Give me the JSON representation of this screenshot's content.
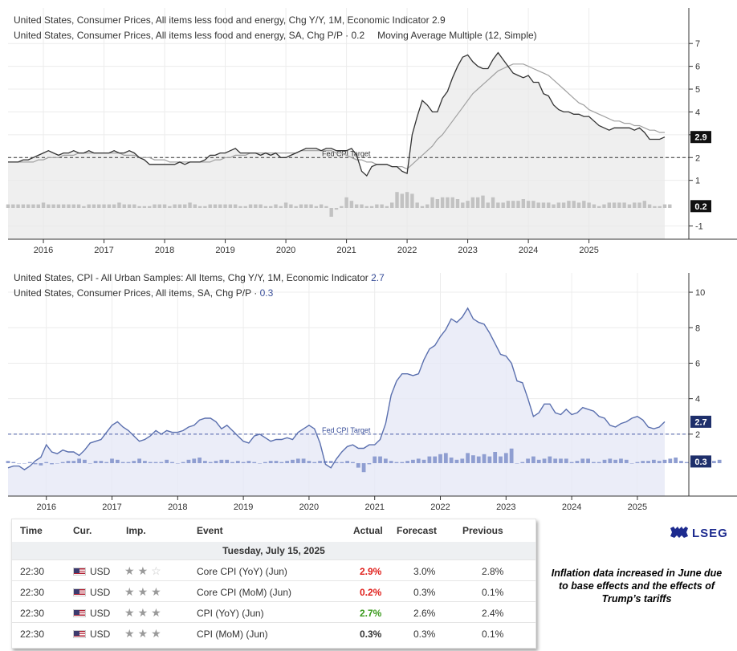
{
  "panel1": {
    "legend1_label": "United States, Consumer Prices, All items less food and energy, Chg Y/Y, 1M, Economic Indicator",
    "legend1_value": "2.9",
    "legend2_label": "United States, Consumer Prices, All items less food and energy, SA, Chg P/P ·",
    "legend2_value": "0.2",
    "legend2_extra": "Moving Average Multiple (12, Simple)",
    "target_label": "Fed CPI Target",
    "badge_line": "2.9",
    "badge_bar": "0.2"
  },
  "panel2": {
    "legend1_label": "United States, CPI - All Urban Samples: All Items, Chg Y/Y, 1M, Economic Indicator",
    "legend1_value": "2.7",
    "legend2_label": "United States, Consumer Prices, All items, SA, Chg P/P ·",
    "legend2_value": "0.3",
    "target_label": "Fed CPI Target",
    "badge_line": "2.7",
    "badge_bar": "0.3"
  },
  "calendar": {
    "headers": {
      "time": "Time",
      "cur": "Cur.",
      "imp": "Imp.",
      "event": "Event",
      "actual": "Actual",
      "forecast": "Forecast",
      "previous": "Previous"
    },
    "date": "Tuesday, July 15, 2025",
    "rows": [
      {
        "time": "22:30",
        "cur": "USD",
        "event": "Core CPI (YoY) (Jun)",
        "actual": "2.9%",
        "forecast": "3.0%",
        "previous": "2.8%",
        "actual_color": "#e0201c",
        "stars_filled": 2
      },
      {
        "time": "22:30",
        "cur": "USD",
        "event": "Core CPI (MoM) (Jun)",
        "actual": "0.2%",
        "forecast": "0.3%",
        "previous": "0.1%",
        "actual_color": "#e0201c",
        "stars_filled": 3
      },
      {
        "time": "22:30",
        "cur": "USD",
        "event": "CPI (YoY) (Jun)",
        "actual": "2.7%",
        "forecast": "2.6%",
        "previous": "2.4%",
        "actual_color": "#3a9a1c",
        "stars_filled": 3
      },
      {
        "time": "22:30",
        "cur": "USD",
        "event": "CPI (MoM) (Jun)",
        "actual": "0.3%",
        "forecast": "0.3%",
        "previous": "0.1%",
        "actual_color": "#333333",
        "stars_filled": 3
      }
    ]
  },
  "logo_text": "LSEG",
  "note": "Inflation data increased in June due to base effects and the effects of Trump’s tariffs",
  "chart_data": [
    {
      "type": "line",
      "x_start": "2015-06",
      "x_ticks": [
        "2016",
        "2017",
        "2018",
        "2019",
        "2020",
        "2021",
        "2022",
        "2023",
        "2024",
        "2025"
      ],
      "ylim": [
        -1.3,
        7.5
      ],
      "y_ticks": [
        "-1",
        "1",
        "2",
        "3",
        "4",
        "5",
        "6",
        "7"
      ],
      "reference_line": 2,
      "grid": true,
      "series": [
        {
          "name": "United States, Consumer Prices, All items less food and energy, Chg Y/Y, 1M, Economic Indicator",
          "kind": "line",
          "color": "#333333",
          "values": [
            1.8,
            1.8,
            1.8,
            1.9,
            1.9,
            2.0,
            2.1,
            2.2,
            2.3,
            2.2,
            2.1,
            2.2,
            2.2,
            2.3,
            2.2,
            2.2,
            2.3,
            2.2,
            2.2,
            2.2,
            2.2,
            2.3,
            2.2,
            2.2,
            2.3,
            2.2,
            2.0,
            1.9,
            1.7,
            1.7,
            1.7,
            1.7,
            1.7,
            1.7,
            1.8,
            1.7,
            1.8,
            1.8,
            1.8,
            1.9,
            2.1,
            2.1,
            2.2,
            2.2,
            2.3,
            2.4,
            2.2,
            2.2,
            2.2,
            2.2,
            2.1,
            2.2,
            2.1,
            2.2,
            2.0,
            2.0,
            2.1,
            2.2,
            2.3,
            2.4,
            2.4,
            2.4,
            2.3,
            2.4,
            2.4,
            2.3,
            2.3,
            2.3,
            2.4,
            2.1,
            1.4,
            1.2,
            1.6,
            1.7,
            1.7,
            1.7,
            1.6,
            1.6,
            1.4,
            1.3,
            3.0,
            3.8,
            4.5,
            4.3,
            4.0,
            4.0,
            4.6,
            4.9,
            5.5,
            6.0,
            6.4,
            6.5,
            6.2,
            6.0,
            5.9,
            5.9,
            6.3,
            6.6,
            6.3,
            6.0,
            5.7,
            5.6,
            5.5,
            5.6,
            5.3,
            5.3,
            4.8,
            4.7,
            4.3,
            4.1,
            4.0,
            4.0,
            3.9,
            3.9,
            3.8,
            3.8,
            3.6,
            3.4,
            3.3,
            3.2,
            3.3,
            3.3,
            3.3,
            3.3,
            3.2,
            3.3,
            3.1,
            2.8,
            2.8,
            2.8,
            2.9
          ]
        },
        {
          "name": "Moving Average Multiple (12, Simple)",
          "kind": "line",
          "color": "#a0a0a0",
          "values": [
            1.8,
            1.8,
            1.8,
            1.8,
            1.8,
            1.8,
            1.9,
            1.9,
            2.0,
            2.0,
            2.0,
            2.1,
            2.1,
            2.1,
            2.2,
            2.2,
            2.2,
            2.2,
            2.2,
            2.2,
            2.2,
            2.2,
            2.2,
            2.1,
            2.1,
            2.1,
            2.0,
            2.0,
            2.0,
            1.9,
            1.9,
            1.9,
            1.8,
            1.8,
            1.8,
            1.8,
            1.8,
            1.8,
            1.8,
            1.8,
            1.8,
            1.9,
            1.9,
            2.0,
            2.0,
            2.1,
            2.1,
            2.1,
            2.2,
            2.2,
            2.2,
            2.2,
            2.2,
            2.2,
            2.2,
            2.2,
            2.2,
            2.2,
            2.3,
            2.3,
            2.3,
            2.3,
            2.3,
            2.3,
            2.3,
            2.2,
            2.2,
            2.1,
            2.0,
            1.9,
            1.9,
            1.8,
            1.8,
            1.7,
            1.7,
            1.7,
            1.6,
            1.6,
            1.6,
            1.5,
            1.7,
            1.9,
            2.1,
            2.3,
            2.5,
            2.8,
            3.0,
            3.3,
            3.6,
            3.9,
            4.2,
            4.5,
            4.8,
            5.0,
            5.2,
            5.4,
            5.6,
            5.8,
            5.9,
            6.0,
            6.1,
            6.1,
            6.1,
            6.0,
            5.9,
            5.8,
            5.7,
            5.6,
            5.4,
            5.2,
            5.0,
            4.8,
            4.6,
            4.4,
            4.3,
            4.1,
            4.0,
            3.9,
            3.8,
            3.7,
            3.6,
            3.6,
            3.5,
            3.5,
            3.4,
            3.4,
            3.3,
            3.2,
            3.2,
            3.1,
            3.1
          ]
        },
        {
          "name": "United States, Consumer Prices, All items less food and energy, SA, Chg P/P",
          "kind": "bar",
          "color": "#c2c2c2",
          "values": [
            0.2,
            0.2,
            0.2,
            0.2,
            0.2,
            0.2,
            0.2,
            0.3,
            0.2,
            0.2,
            0.2,
            0.2,
            0.2,
            0.2,
            0.2,
            0.1,
            0.2,
            0.2,
            0.2,
            0.2,
            0.2,
            0.2,
            0.3,
            0.2,
            0.2,
            0.2,
            0.1,
            0.1,
            0.1,
            0.2,
            0.2,
            0.2,
            0.1,
            0.2,
            0.2,
            0.2,
            0.3,
            0.2,
            0.1,
            0.1,
            0.2,
            0.2,
            0.2,
            0.2,
            0.2,
            0.2,
            0.1,
            0.1,
            0.2,
            0.2,
            0.2,
            0.1,
            0.1,
            0.2,
            0.1,
            0.3,
            0.2,
            0.1,
            0.2,
            0.2,
            0.2,
            0.1,
            0.2,
            0.1,
            -0.5,
            -0.1,
            0.1,
            0.6,
            0.4,
            0.2,
            0.2,
            0.1,
            0.1,
            0.2,
            0.2,
            0.1,
            0.3,
            0.9,
            0.8,
            0.9,
            0.8,
            0.3,
            0.1,
            0.2,
            0.6,
            0.5,
            0.6,
            0.6,
            0.6,
            0.5,
            0.3,
            0.4,
            0.6,
            0.6,
            0.7,
            0.3,
            0.6,
            0.3,
            0.3,
            0.4,
            0.4,
            0.4,
            0.5,
            0.4,
            0.4,
            0.3,
            0.3,
            0.3,
            0.2,
            0.3,
            0.3,
            0.4,
            0.4,
            0.3,
            0.4,
            0.3,
            0.2,
            0.1,
            0.2,
            0.3,
            0.3,
            0.3,
            0.3,
            0.2,
            0.3,
            0.3,
            0.4,
            0.2,
            0.1,
            0.1,
            0.2,
            0.2
          ]
        }
      ]
    },
    {
      "type": "line",
      "x_start": "2015-06",
      "x_ticks": [
        "2016",
        "2017",
        "2018",
        "2019",
        "2020",
        "2021",
        "2022",
        "2023",
        "2024",
        "2025"
      ],
      "ylim": [
        -1.4,
        10.5
      ],
      "y_ticks": [
        "2",
        "4",
        "6",
        "8",
        "10"
      ],
      "reference_line": 2,
      "grid": true,
      "series": [
        {
          "name": "United States, CPI - All Urban Samples: All Items, Chg Y/Y, 1M, Economic Indicator",
          "kind": "line",
          "color": "#5a6fae",
          "values": [
            0.1,
            0.2,
            0.2,
            0.0,
            0.2,
            0.5,
            0.7,
            1.4,
            1.0,
            0.9,
            1.1,
            1.0,
            1.0,
            0.8,
            1.1,
            1.5,
            1.6,
            1.7,
            2.1,
            2.5,
            2.7,
            2.4,
            2.2,
            1.9,
            1.6,
            1.7,
            1.9,
            2.2,
            2.0,
            2.2,
            2.1,
            2.1,
            2.2,
            2.4,
            2.5,
            2.8,
            2.9,
            2.9,
            2.7,
            2.3,
            2.5,
            2.2,
            1.9,
            1.6,
            1.5,
            1.9,
            2.0,
            1.8,
            1.6,
            1.7,
            1.7,
            1.8,
            1.7,
            2.1,
            2.3,
            2.5,
            2.3,
            1.5,
            0.3,
            0.1,
            0.6,
            1.0,
            1.3,
            1.4,
            1.2,
            1.2,
            1.4,
            1.4,
            1.7,
            2.6,
            4.2,
            5.0,
            5.4,
            5.4,
            5.3,
            5.4,
            6.2,
            6.8,
            7.0,
            7.5,
            7.9,
            8.5,
            8.3,
            8.6,
            9.1,
            8.5,
            8.3,
            8.2,
            7.7,
            7.1,
            6.5,
            6.4,
            6.0,
            5.0,
            4.9,
            4.0,
            3.0,
            3.2,
            3.7,
            3.7,
            3.2,
            3.1,
            3.4,
            3.1,
            3.2,
            3.5,
            3.4,
            3.3,
            3.0,
            2.9,
            2.5,
            2.4,
            2.6,
            2.7,
            2.9,
            3.0,
            2.8,
            2.4,
            2.3,
            2.4,
            2.7
          ]
        },
        {
          "name": "United States, Consumer Prices, All items, SA, Chg P/P",
          "kind": "bar",
          "color": "#8f9ed1",
          "values": [
            0.2,
            0.1,
            0.0,
            0.0,
            0.1,
            -0.1,
            -0.2,
            0.1,
            -0.1,
            0.0,
            0.1,
            0.2,
            0.2,
            0.4,
            0.3,
            0.0,
            0.2,
            0.2,
            0.1,
            0.4,
            0.3,
            0.1,
            0.1,
            0.2,
            0.4,
            0.2,
            0.1,
            0.1,
            0.1,
            0.3,
            0.1,
            0.0,
            0.1,
            0.3,
            0.4,
            0.5,
            0.2,
            0.1,
            0.2,
            0.3,
            0.3,
            0.1,
            0.2,
            0.1,
            0.2,
            0.1,
            0.0,
            0.1,
            0.2,
            0.2,
            0.1,
            0.2,
            0.3,
            0.4,
            0.4,
            0.2,
            0.1,
            0.2,
            0.2,
            0.2,
            0.1,
            0.1,
            0.2,
            0.1,
            -0.4,
            -0.8,
            -0.1,
            0.6,
            0.6,
            0.4,
            0.2,
            0.1,
            0.1,
            0.2,
            0.3,
            0.4,
            0.3,
            0.6,
            0.6,
            0.8,
            0.9,
            0.5,
            0.3,
            0.4,
            0.9,
            0.7,
            0.6,
            0.8,
            0.6,
            1.0,
            0.6,
            0.9,
            1.3,
            0.0,
            0.1,
            0.4,
            0.6,
            0.3,
            0.4,
            0.6,
            0.4,
            0.4,
            0.4,
            0.1,
            0.2,
            0.4,
            0.4,
            0.1,
            0.1,
            0.3,
            0.4,
            0.3,
            0.4,
            0.3,
            0.0,
            0.1,
            0.2,
            0.2,
            0.3,
            0.2,
            0.3,
            0.4,
            0.5,
            0.2,
            0.1,
            -0.1,
            0.1,
            0.3,
            0.2,
            0.2,
            0.3
          ]
        }
      ]
    }
  ]
}
